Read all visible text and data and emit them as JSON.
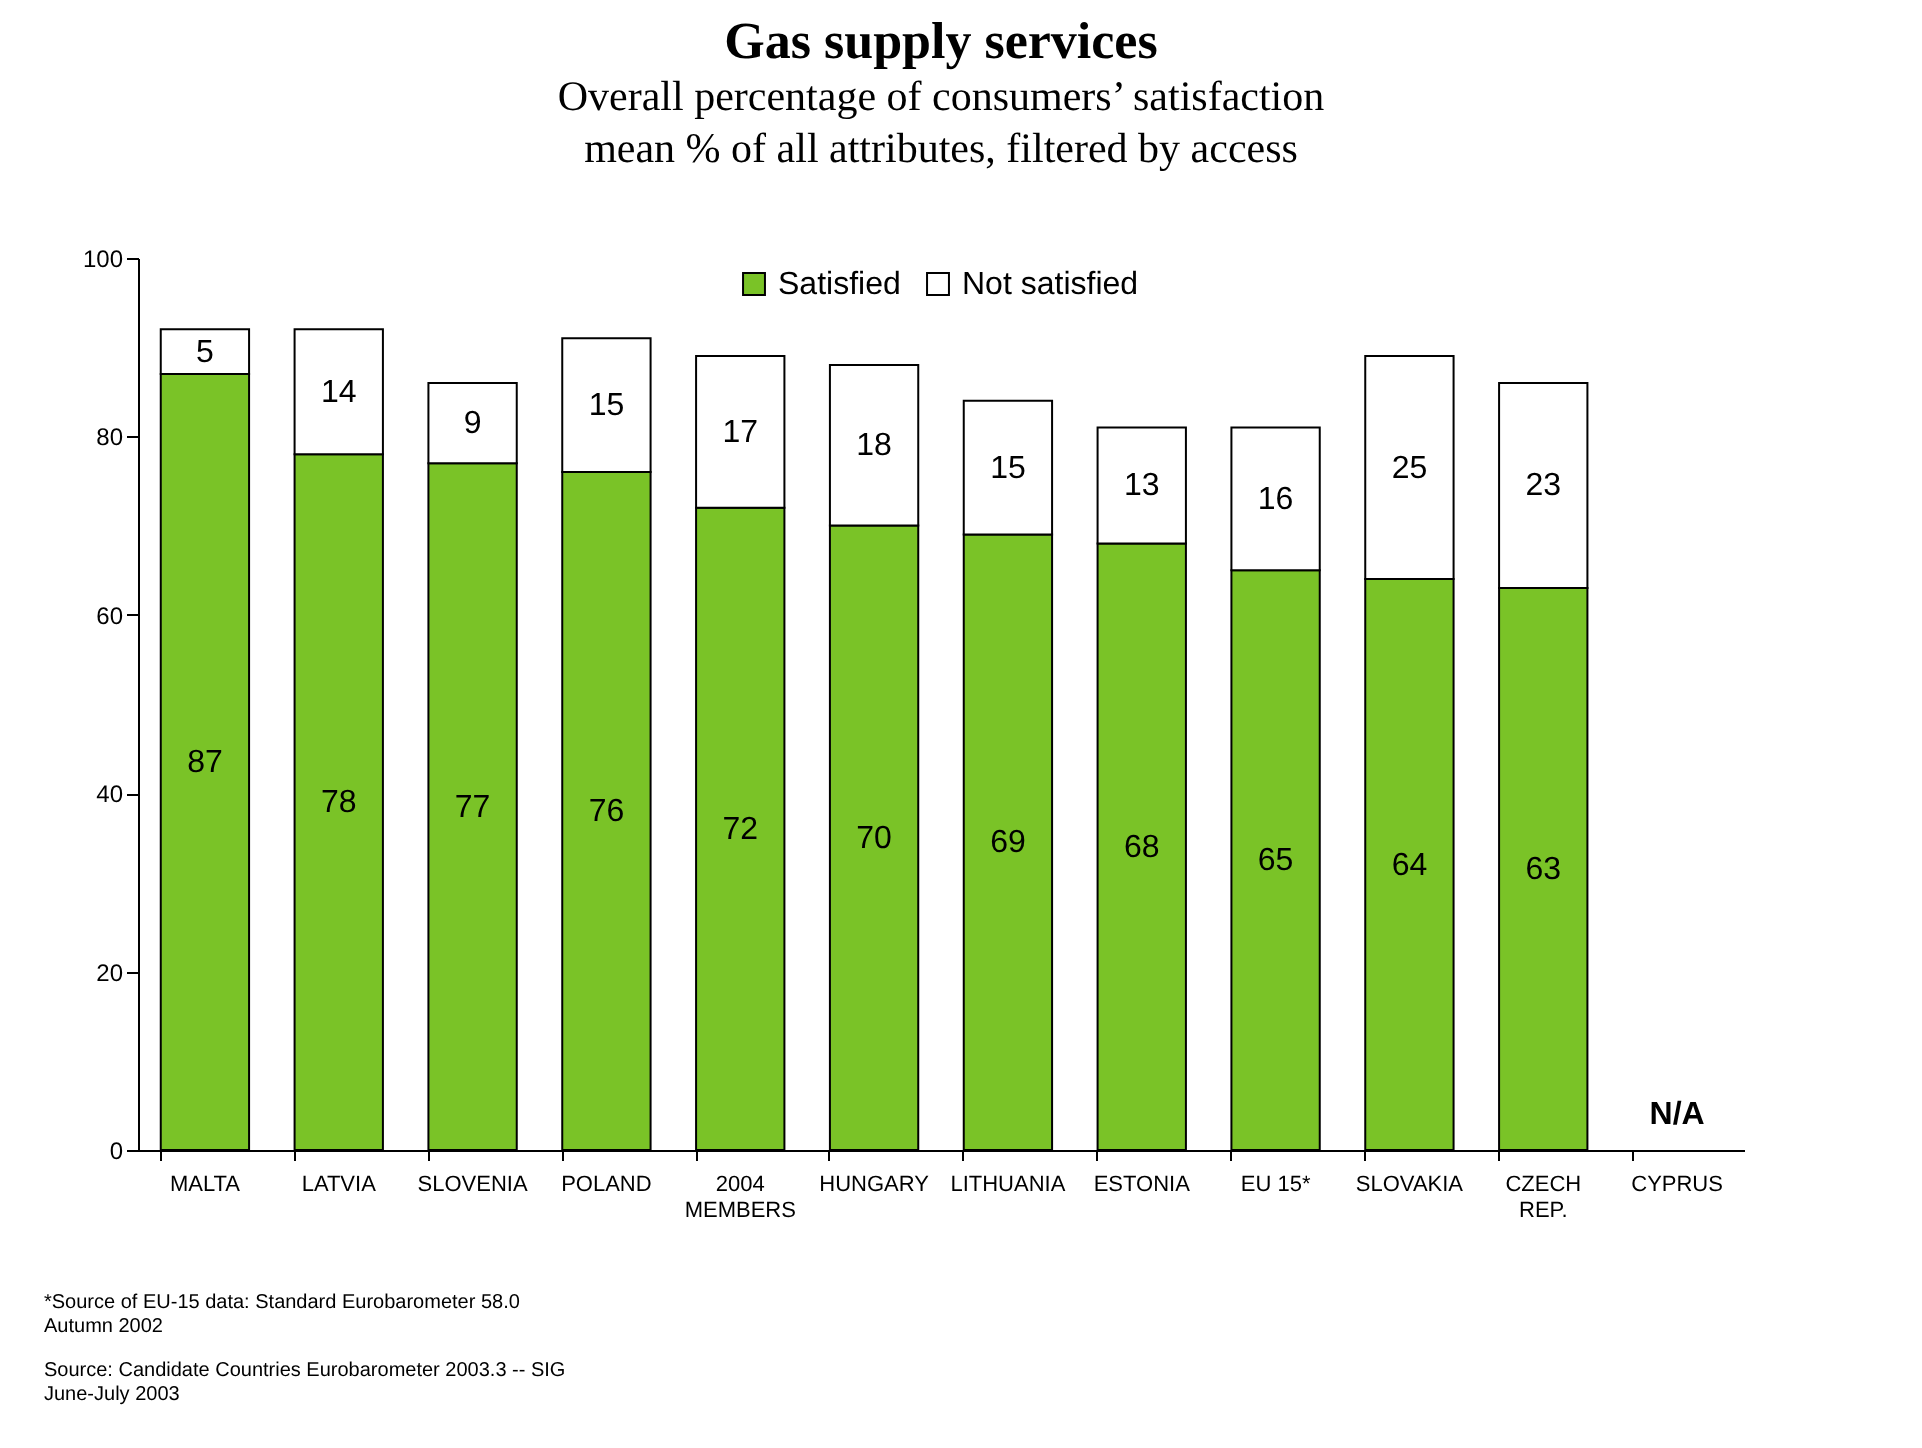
{
  "chart_data": {
    "type": "bar",
    "title": "Gas supply services",
    "subtitle": "Overall percentage of consumers’ satisfaction\nmean % of all attributes, filtered by access",
    "categories": [
      "MALTA",
      "LATVIA",
      "SLOVENIA",
      "POLAND",
      "2004\nMEMBERS",
      "HUNGARY",
      "LITHUANIA",
      "ESTONIA",
      "EU 15*",
      "SLOVAKIA",
      "CZECH\nREP.",
      "CYPRUS"
    ],
    "series": [
      {
        "name": "Satisfied",
        "color": "#7ac327",
        "values": [
          87,
          78,
          77,
          76,
          72,
          70,
          69,
          68,
          65,
          64,
          63,
          null
        ]
      },
      {
        "name": "Not satisfied",
        "color": "#ffffff",
        "values": [
          5,
          14,
          9,
          15,
          17,
          18,
          15,
          13,
          16,
          25,
          23,
          null
        ]
      }
    ],
    "stacked": true,
    "data_labels": true,
    "ylim": [
      0,
      100
    ],
    "yticks": [
      0,
      20,
      40,
      60,
      80,
      100
    ],
    "grid": false,
    "legend": "top",
    "annotations": [
      "N/A",
      "*Source of EU-15 data: Standard Eurobarometer 58.0\nAutumn 2002",
      "Source: Candidate Countries Eurobarometer 2003.3 -- SIG\nJune-July 2003"
    ]
  }
}
